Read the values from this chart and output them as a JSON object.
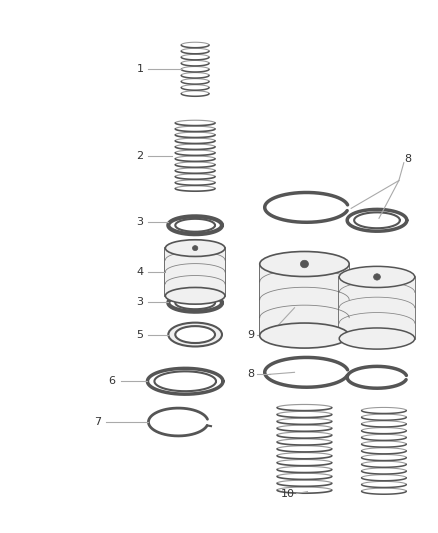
{
  "background_color": "#ffffff",
  "figure_width": 4.38,
  "figure_height": 5.33,
  "dpi": 100,
  "line_color": "#aaaaaa",
  "text_color": "#333333",
  "part_color": "#555555",
  "part_fill": "#f0f0f0",
  "spring_color": "#555555",
  "spring_fill": "#e8e8e8"
}
